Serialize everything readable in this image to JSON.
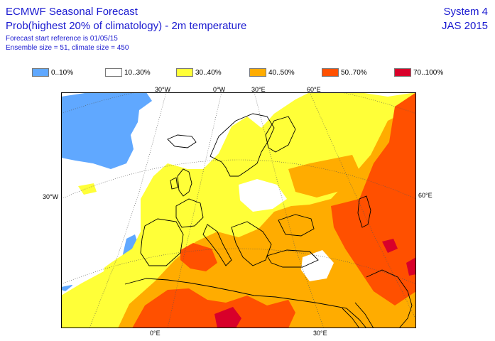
{
  "header": {
    "title": "ECMWF Seasonal Forecast",
    "subtitle": "Prob(highest 20% of climatology) - 2m temperature",
    "forecast_start": "Forecast start reference is 01/05/15",
    "ensemble": "Ensemble size = 51, climate size = 450",
    "system": "System 4",
    "period": "JAS 2015"
  },
  "legend": [
    {
      "label": "0..10%",
      "color": "#60a8ff"
    },
    {
      "label": "10..30%",
      "color": "#ffffff"
    },
    {
      "label": "30..40%",
      "color": "#ffff38"
    },
    {
      "label": "40..50%",
      "color": "#ffac00"
    },
    {
      "label": "50..70%",
      "color": "#ff5000"
    },
    {
      "label": "70..100%",
      "color": "#d8002a"
    }
  ],
  "map": {
    "colors": {
      "land_bg": "#ffffff",
      "blue": "#60a8ff",
      "yellow": "#ffff38",
      "orange": "#ffac00",
      "red_orange": "#ff5000",
      "red": "#d8002a",
      "coast": "#000000",
      "grid": "#555555"
    },
    "axis_labels": {
      "top_30w": "30°W",
      "top_0w": "0°W",
      "top_30e": "30°E",
      "top_60e": "60°E",
      "left_30w": "30°W",
      "right_60e": "60°E",
      "bottom_0e": "0°E",
      "bottom_30e": "30°E"
    }
  }
}
